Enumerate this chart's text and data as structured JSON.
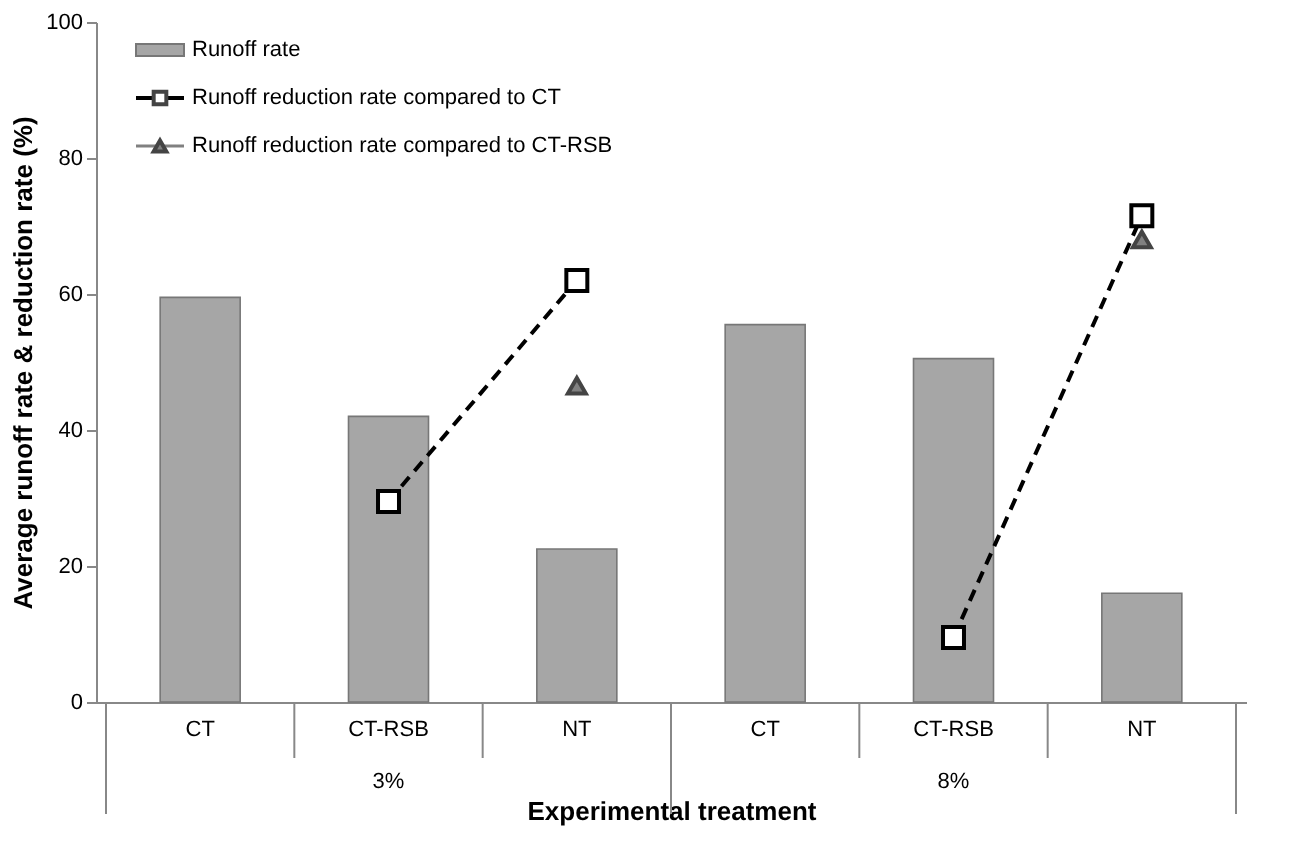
{
  "chart_data": {
    "type": "bar",
    "categories": [
      "CT",
      "CT-RSB",
      "NT",
      "CT",
      "CT-RSB",
      "NT"
    ],
    "series": [
      {
        "name": "Runoff rate",
        "color": "#a6a6a6",
        "values": [
          59.5,
          42,
          22.5,
          55.5,
          50.5,
          16
        ]
      },
      {
        "name": "Runoff reduction rate compared to CT",
        "type": "line",
        "color": "#000000",
        "line_style": "dashed",
        "marker": "square",
        "values": [
          null,
          29.5,
          62,
          null,
          9.5,
          71.5
        ]
      },
      {
        "name": "Runoff reduction rate compared to CT-RSB",
        "type": "scatter",
        "color": "#808080",
        "marker": "triangle",
        "values": [
          null,
          null,
          46.5,
          null,
          null,
          68
        ]
      }
    ],
    "xlabel": "Experimental treatment",
    "ylabel": "Average runoff rate & reduction rate (%)",
    "ylim": [
      0,
      100
    ],
    "yticks": [
      0,
      20,
      40,
      60,
      80,
      100
    ],
    "grid": false,
    "legend": "top left",
    "annotations": [
      "3%",
      "8%"
    ]
  }
}
